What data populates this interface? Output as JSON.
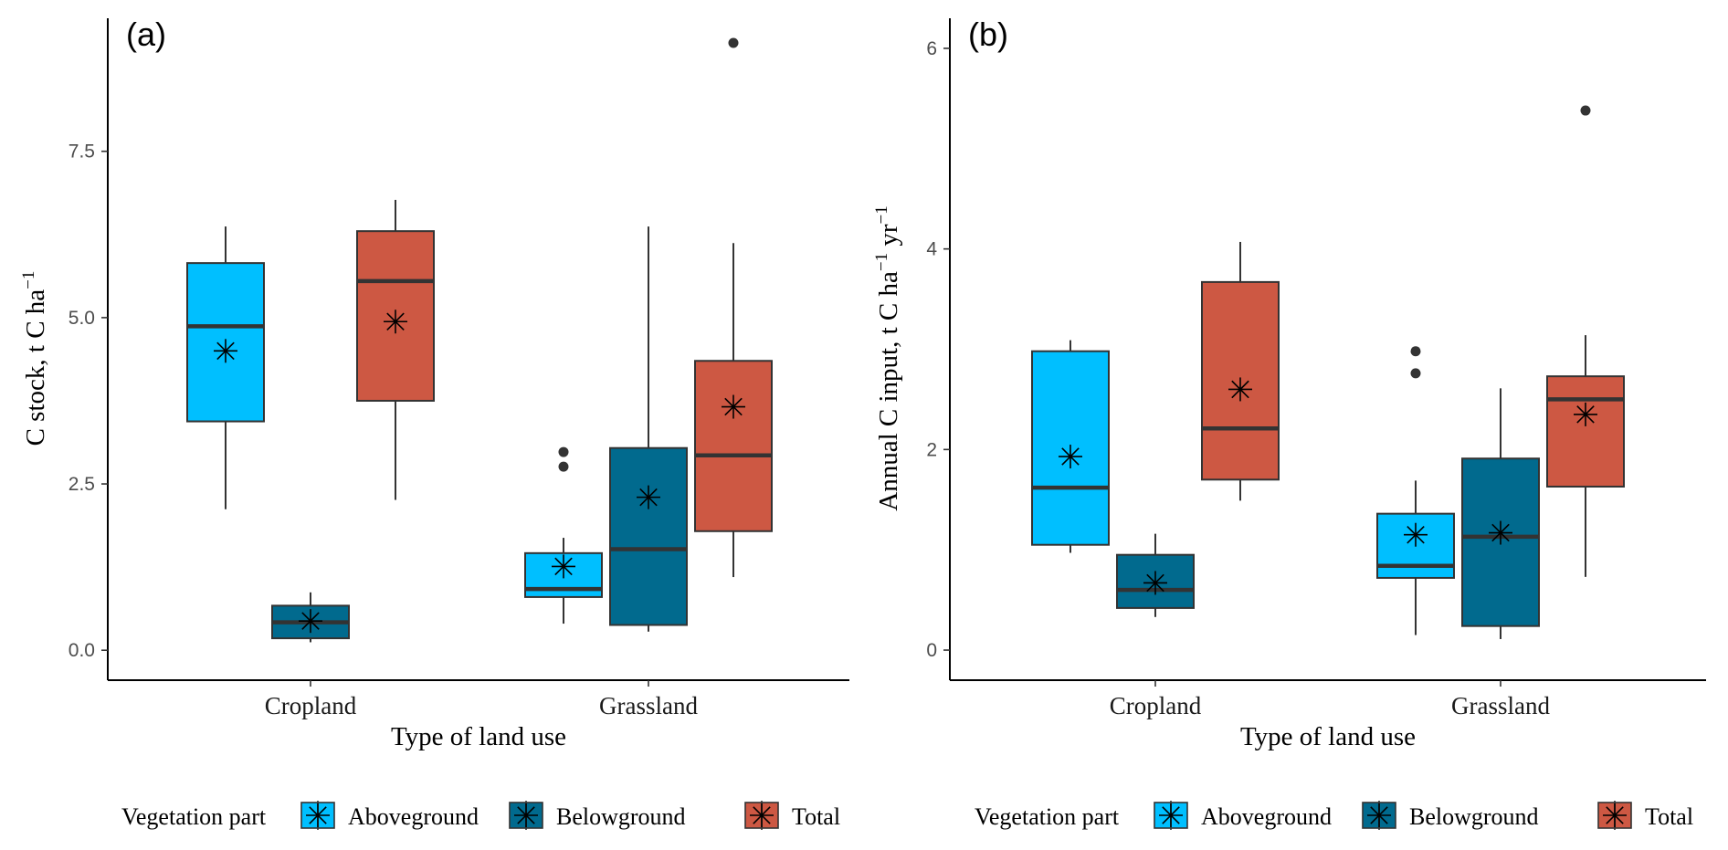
{
  "legend": {
    "title": "Vegetation part",
    "entries": [
      {
        "label": "Aboveground",
        "color": "#00BFFF"
      },
      {
        "label": "Belowground",
        "color": "#016A8E"
      },
      {
        "label": "Total",
        "color": "#CD5843"
      }
    ]
  },
  "chart_data": [
    {
      "panel": "(a)",
      "type": "boxplot",
      "xlabel": "Type of land use",
      "ylabel": "C stock, t C ha",
      "ylabel_superscript": "−1",
      "categories": [
        "Cropland",
        "Grassland"
      ],
      "ylim": [
        -0.45,
        9.5
      ],
      "yticks": [
        0.0,
        2.5,
        5.0,
        7.5
      ],
      "ytick_labels": [
        "0.0",
        "2.5",
        "5.0",
        "7.5"
      ],
      "series": [
        {
          "name": "Aboveground",
          "color": "#00BFFF",
          "boxes": [
            {
              "category": "Cropland",
              "min": 2.12,
              "q1": 3.44,
              "median": 4.87,
              "q3": 5.82,
              "max": 6.37,
              "mean": 4.5,
              "outliers": []
            },
            {
              "category": "Grassland",
              "min": 0.4,
              "q1": 0.8,
              "median": 0.92,
              "q3": 1.46,
              "max": 1.69,
              "mean": 1.26,
              "outliers": [
                2.76,
                2.98
              ]
            }
          ]
        },
        {
          "name": "Belowground",
          "color": "#016A8E",
          "boxes": [
            {
              "category": "Cropland",
              "min": 0.12,
              "q1": 0.18,
              "median": 0.42,
              "q3": 0.67,
              "max": 0.87,
              "mean": 0.44,
              "outliers": []
            },
            {
              "category": "Grassland",
              "min": 0.28,
              "q1": 0.38,
              "median": 1.52,
              "q3": 3.04,
              "max": 6.37,
              "mean": 2.3,
              "outliers": []
            }
          ]
        },
        {
          "name": "Total",
          "color": "#CD5843",
          "boxes": [
            {
              "category": "Cropland",
              "min": 2.26,
              "q1": 3.75,
              "median": 5.55,
              "q3": 6.3,
              "max": 6.77,
              "mean": 4.94,
              "outliers": []
            },
            {
              "category": "Grassland",
              "min": 1.1,
              "q1": 1.79,
              "median": 2.93,
              "q3": 4.35,
              "max": 6.12,
              "mean": 3.66,
              "outliers": [
                9.13
              ]
            }
          ]
        }
      ]
    },
    {
      "panel": "(b)",
      "type": "boxplot",
      "xlabel": "Type of land use",
      "ylabel": "Annual C input, t C ha",
      "ylabel_superscript": "−1",
      "ylabel_suffix": " yr",
      "ylabel_suffix_superscript": "−1",
      "categories": [
        "Cropland",
        "Grassland"
      ],
      "ylim": [
        -0.3,
        6.3
      ],
      "yticks": [
        0,
        2,
        4,
        6
      ],
      "ytick_labels": [
        "0",
        "2",
        "4",
        "6"
      ],
      "series": [
        {
          "name": "Aboveground",
          "color": "#00BFFF",
          "boxes": [
            {
              "category": "Cropland",
              "min": 0.97,
              "q1": 1.05,
              "median": 1.62,
              "q3": 2.98,
              "max": 3.09,
              "mean": 1.93,
              "outliers": []
            },
            {
              "category": "Grassland",
              "min": 0.15,
              "q1": 0.72,
              "median": 0.84,
              "q3": 1.36,
              "max": 1.69,
              "mean": 1.15,
              "outliers": [
                2.76,
                2.98
              ]
            }
          ]
        },
        {
          "name": "Belowground",
          "color": "#016A8E",
          "boxes": [
            {
              "category": "Cropland",
              "min": 0.33,
              "q1": 0.42,
              "median": 0.6,
              "q3": 0.95,
              "max": 1.16,
              "mean": 0.67,
              "outliers": []
            },
            {
              "category": "Grassland",
              "min": 0.11,
              "q1": 0.24,
              "median": 1.13,
              "q3": 1.91,
              "max": 2.61,
              "mean": 1.17,
              "outliers": []
            }
          ]
        },
        {
          "name": "Total",
          "color": "#CD5843",
          "boxes": [
            {
              "category": "Cropland",
              "min": 1.49,
              "q1": 1.7,
              "median": 2.21,
              "q3": 3.67,
              "max": 4.07,
              "mean": 2.6,
              "outliers": []
            },
            {
              "category": "Grassland",
              "min": 0.73,
              "q1": 1.63,
              "median": 2.5,
              "q3": 2.73,
              "max": 3.14,
              "mean": 2.35,
              "outliers": [
                5.38
              ]
            }
          ]
        }
      ]
    }
  ]
}
